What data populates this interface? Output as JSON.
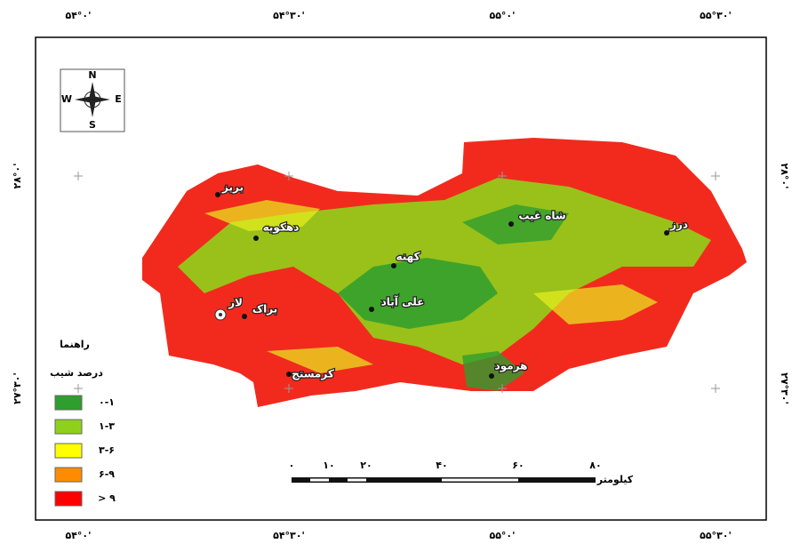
{
  "graticule": {
    "top": [
      "۵۴°۰'",
      "۵۴°۳۰'",
      "۵۵°۰'",
      "۵۵°۳۰'"
    ],
    "bottom": [
      "۵۴°۰'",
      "۵۴°۳۰'",
      "۵۵°۰'",
      "۵۵°۳۰'"
    ],
    "left": [
      "۲۸°۰'",
      "۲۷°۳۰'"
    ],
    "right": [
      "۲۸°۰'",
      "۲۷°۳۰'"
    ]
  },
  "compass": {
    "north": "N",
    "east": "E",
    "south": "S",
    "west": "W"
  },
  "places": [
    "بریز",
    "دهکویه",
    "کهنه",
    "شاه غیب",
    "درز",
    "لار",
    "براک",
    "علی آباد",
    "هرمود",
    "کرمستج"
  ],
  "legend": {
    "title": "راهنما",
    "subtitle": "درصد شیب",
    "items": [
      "۰-۱",
      "۱-۳",
      "۳-۶",
      "۶-۹",
      "> ۹"
    ]
  },
  "scale": {
    "labels": [
      "۰",
      "۱۰",
      "۲۰",
      "۴۰",
      "۶۰",
      "۸۰"
    ],
    "unit": "کیلومتر"
  }
}
